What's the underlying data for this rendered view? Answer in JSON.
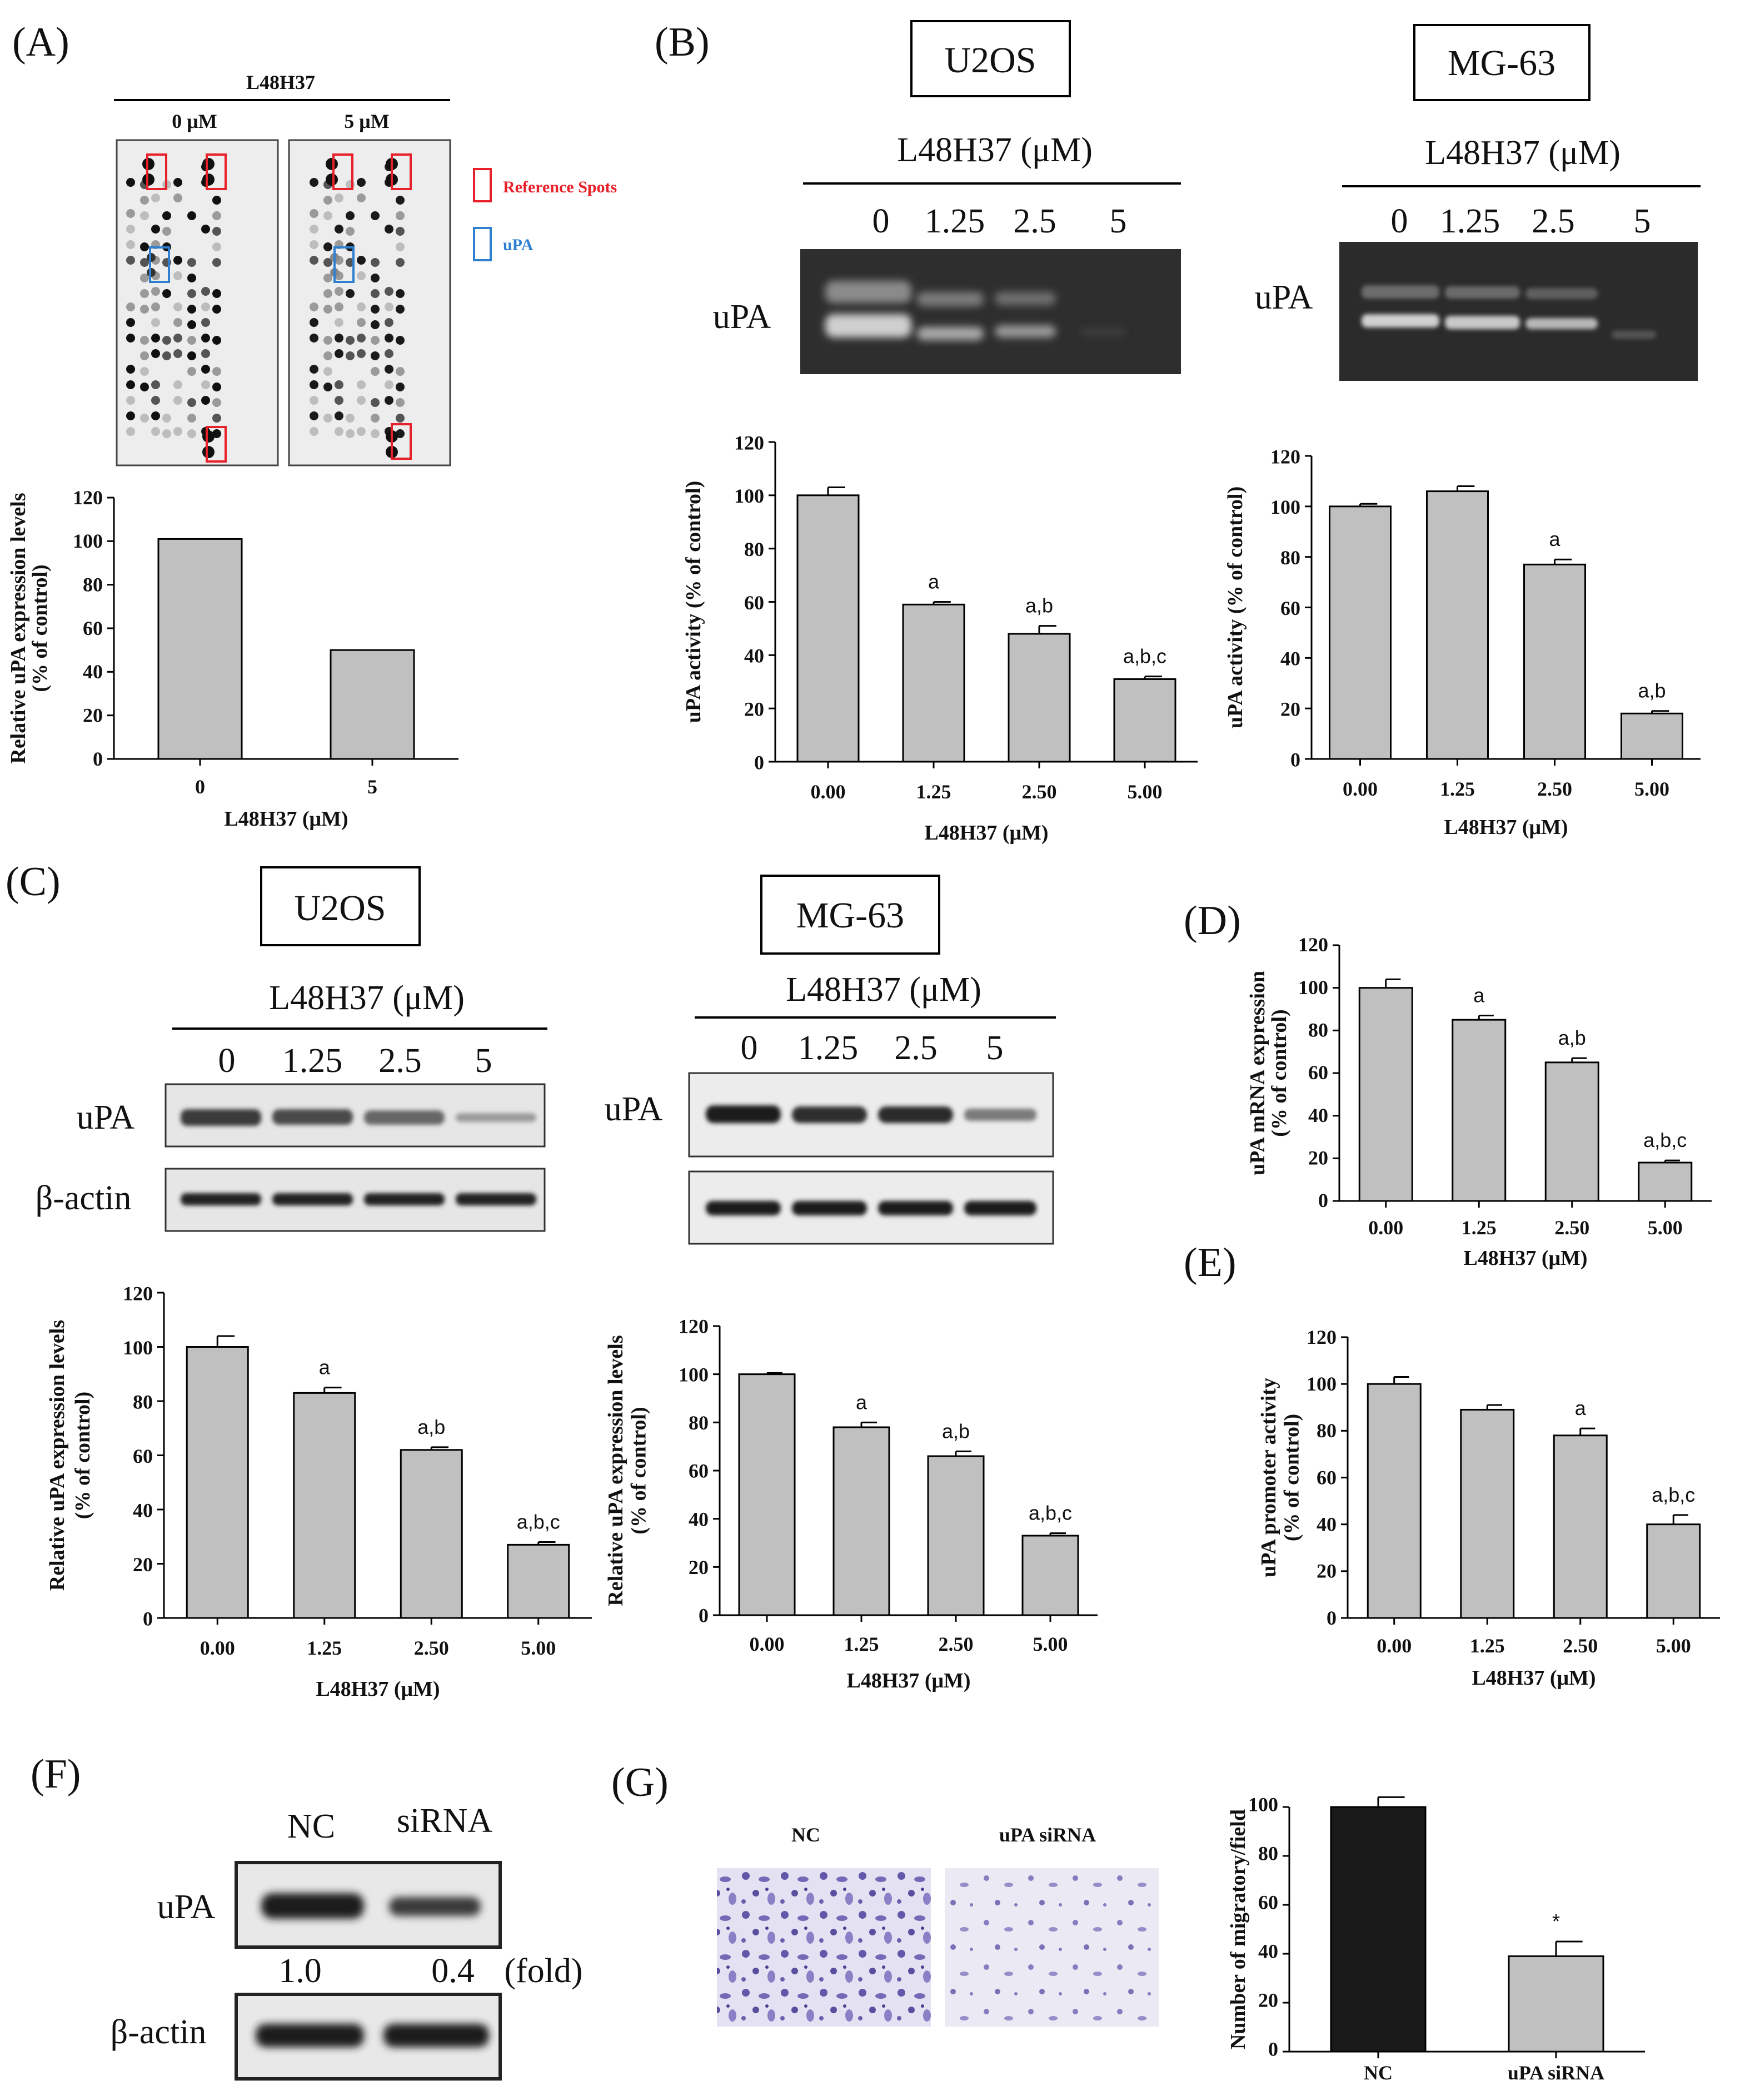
{
  "panel_labels": {
    "A": "(A)",
    "B": "(B)",
    "C": "(C)",
    "D": "(D)",
    "E": "(E)",
    "F": "(F)",
    "G": "(G)"
  },
  "panelA": {
    "compound": "L48H37",
    "dose0": "0 μM",
    "dose5": "5 μM",
    "legend_ref": "Reference Spots",
    "legend_upa": "uPA"
  },
  "panelB": {
    "cell1": "U2OS",
    "cell2": "MG-63",
    "dose_label": "L48H37 (μM)",
    "doses": [
      "0",
      "1.25",
      "2.5",
      "5"
    ],
    "band_label": "uPA"
  },
  "panelC": {
    "cell1": "U2OS",
    "cell2": "MG-63",
    "dose_label": "L48H37 (μM)",
    "doses": [
      "0",
      "1.25",
      "2.5",
      "5"
    ],
    "band1": "uPA",
    "band2": "β-actin"
  },
  "panelF": {
    "lanes": [
      "NC",
      "siRNA"
    ],
    "band1": "uPA",
    "band2": "β-actin",
    "fold_values": [
      "1.0",
      "0.4"
    ],
    "fold_unit": "(fold)"
  },
  "panelG": {
    "img_label1": "NC",
    "img_label2": "uPA siRNA"
  },
  "colors": {
    "bar": "#c0c0c0",
    "bar_dark": "#1a1a1a",
    "ref_box": "#e8202a",
    "upa_box": "#2f7fd0"
  },
  "chart_data": [
    {
      "id": "A",
      "type": "bar",
      "categories": [
        "0",
        "5"
      ],
      "values": [
        101,
        50
      ],
      "ylim": [
        0,
        120
      ],
      "yticks": [
        0,
        20,
        40,
        60,
        80,
        100,
        120
      ],
      "ylabel": "Relative uPA expression levels (% of control)",
      "xlabel": "L48H37 (μM)",
      "sig": [
        "",
        ""
      ],
      "errors": [
        0,
        0
      ]
    },
    {
      "id": "B1",
      "type": "bar",
      "categories": [
        "0.00",
        "1.25",
        "2.50",
        "5.00"
      ],
      "values": [
        100,
        59,
        48,
        31
      ],
      "errors": [
        3,
        1,
        3,
        1
      ],
      "sig": [
        "",
        "a",
        "a,b",
        "a,b,c"
      ],
      "ylim": [
        0,
        120
      ],
      "yticks": [
        0,
        20,
        40,
        60,
        80,
        100,
        120
      ],
      "ylabel": "uPA activity (% of control)",
      "xlabel": "L48H37 (μM)"
    },
    {
      "id": "B2",
      "type": "bar",
      "categories": [
        "0.00",
        "1.25",
        "2.50",
        "5.00"
      ],
      "values": [
        100,
        106,
        77,
        18
      ],
      "errors": [
        1,
        2,
        2,
        1
      ],
      "sig": [
        "",
        "",
        "a",
        "a,b"
      ],
      "ylim": [
        0,
        120
      ],
      "yticks": [
        0,
        20,
        40,
        60,
        80,
        100,
        120
      ],
      "ylabel": "uPA activity (% of control)",
      "xlabel": "L48H37 (μM)"
    },
    {
      "id": "C1",
      "type": "bar",
      "categories": [
        "0.00",
        "1.25",
        "2.50",
        "5.00"
      ],
      "values": [
        100,
        83,
        62,
        27
      ],
      "errors": [
        4,
        2,
        1,
        1
      ],
      "sig": [
        "",
        "a",
        "a,b",
        "a,b,c"
      ],
      "ylim": [
        0,
        120
      ],
      "yticks": [
        0,
        20,
        40,
        60,
        80,
        100,
        120
      ],
      "ylabel": "Relative uPA expression levels (% of control)",
      "xlabel": "L48H37 (μM)"
    },
    {
      "id": "C2",
      "type": "bar",
      "categories": [
        "0.00",
        "1.25",
        "2.50",
        "5.00"
      ],
      "values": [
        100,
        78,
        66,
        33
      ],
      "errors": [
        0.5,
        2,
        2,
        1
      ],
      "sig": [
        "",
        "a",
        "a,b",
        "a,b,c"
      ],
      "ylim": [
        0,
        120
      ],
      "yticks": [
        0,
        20,
        40,
        60,
        80,
        100,
        120
      ],
      "ylabel": "Relative uPA expression levels (% of control)",
      "xlabel": "L48H37 (μM)"
    },
    {
      "id": "D",
      "type": "bar",
      "categories": [
        "0.00",
        "1.25",
        "2.50",
        "5.00"
      ],
      "values": [
        100,
        85,
        65,
        18
      ],
      "errors": [
        4,
        2,
        2,
        1
      ],
      "sig": [
        "",
        "a",
        "a,b",
        "a,b,c"
      ],
      "ylim": [
        0,
        120
      ],
      "yticks": [
        0,
        20,
        40,
        60,
        80,
        100,
        120
      ],
      "ylabel": "uPA mRNA expression (% of control)",
      "xlabel": "L48H37 (μM)"
    },
    {
      "id": "E",
      "type": "bar",
      "categories": [
        "0.00",
        "1.25",
        "2.50",
        "5.00"
      ],
      "values": [
        100,
        89,
        78,
        40
      ],
      "errors": [
        3,
        2,
        3,
        4
      ],
      "sig": [
        "",
        "",
        "a",
        "a,b,c"
      ],
      "ylim": [
        0,
        120
      ],
      "yticks": [
        0,
        20,
        40,
        60,
        80,
        100,
        120
      ],
      "ylabel": "uPA promoter activity (% of control)",
      "xlabel": "L48H37 (μM)"
    },
    {
      "id": "G",
      "type": "bar",
      "categories": [
        "NC",
        "uPA siRNA"
      ],
      "values": [
        100,
        39
      ],
      "errors": [
        4,
        6
      ],
      "sig": [
        "",
        "*"
      ],
      "ylim": [
        0,
        100
      ],
      "yticks": [
        0,
        20,
        40,
        60,
        80,
        100
      ],
      "ylabel": "Number of migratory/field",
      "xlabel": ""
    }
  ]
}
